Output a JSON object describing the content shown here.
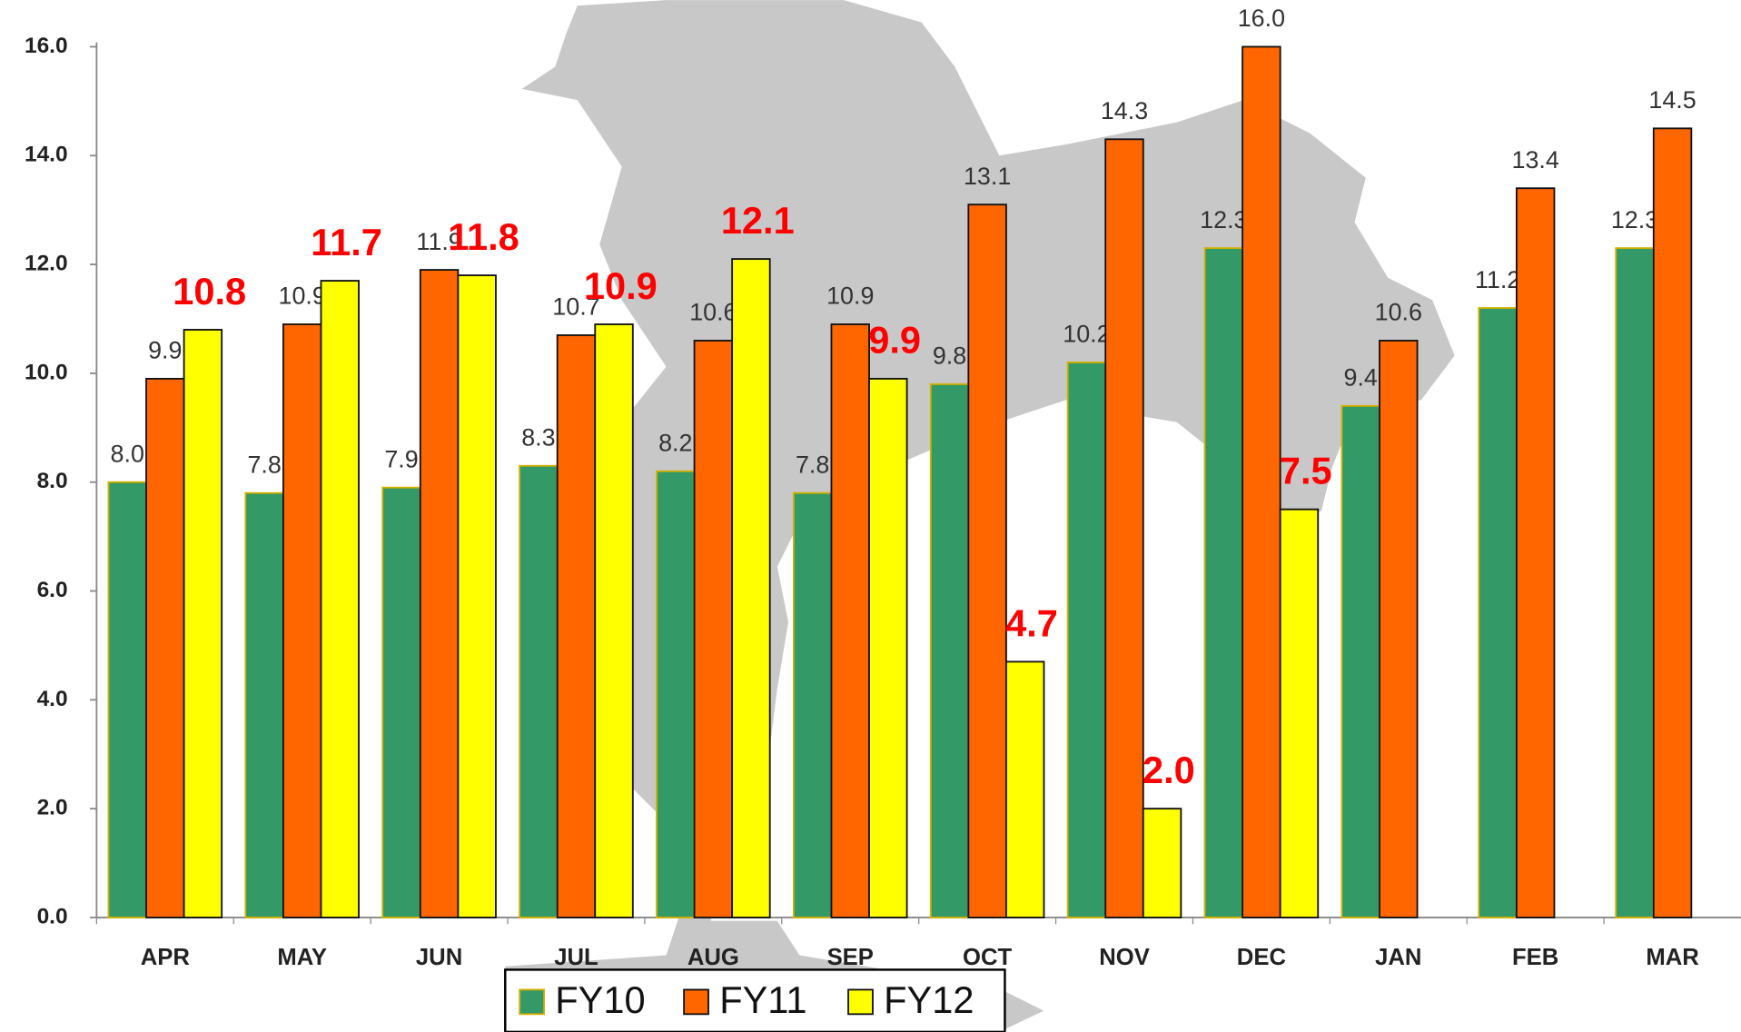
{
  "chart_data": {
    "type": "bar",
    "categories": [
      "APR",
      "MAY",
      "JUN",
      "JUL",
      "AUG",
      "SEP",
      "OCT",
      "NOV",
      "DEC",
      "JAN",
      "FEB",
      "MAR"
    ],
    "series": [
      {
        "name": "FY10",
        "color": "#339966",
        "values": [
          8.0,
          7.8,
          7.9,
          8.3,
          8.2,
          7.8,
          9.8,
          10.2,
          12.3,
          9.4,
          11.2,
          12.3
        ],
        "value_labels": [
          "8.0",
          "7.8",
          "7.9",
          "8.3",
          "8.2",
          "7.8",
          "9.8",
          "10.2",
          "12.3",
          "9.4",
          "11.2",
          "12.3"
        ]
      },
      {
        "name": "FY11",
        "color": "#ff6600",
        "values": [
          9.9,
          10.9,
          11.9,
          10.7,
          10.6,
          10.9,
          13.1,
          14.3,
          16.0,
          10.6,
          13.4,
          14.5
        ],
        "value_labels": [
          "9.9",
          "10.9",
          "11.9",
          "10.7",
          "10.6",
          "10.9",
          "13.1",
          "14.3",
          "16.0",
          "10.6",
          "13.4",
          "14.5"
        ]
      },
      {
        "name": "FY12",
        "color": "#ffff00",
        "values": [
          10.8,
          11.7,
          11.8,
          10.9,
          12.1,
          9.9,
          4.7,
          2.0,
          7.5,
          null,
          null,
          null
        ],
        "value_labels": [
          "10.8",
          "11.7",
          "11.8",
          "10.9",
          "12.1",
          "9.9",
          "4.7",
          "2.0",
          "7.5",
          null,
          null,
          null
        ]
      }
    ],
    "ylim": [
      0,
      16
    ],
    "yticks": [
      {
        "value": 0,
        "label": "0.0"
      },
      {
        "value": 2,
        "label": "2.0"
      },
      {
        "value": 4,
        "label": "4.0"
      },
      {
        "value": 6,
        "label": "6.0"
      },
      {
        "value": 8,
        "label": "8.0"
      },
      {
        "value": 10,
        "label": "10.0"
      },
      {
        "value": 12,
        "label": "12.0"
      },
      {
        "value": 14,
        "label": "14.0"
      },
      {
        "value": 16,
        "label": "16.0"
      }
    ],
    "legend": "bottom"
  }
}
